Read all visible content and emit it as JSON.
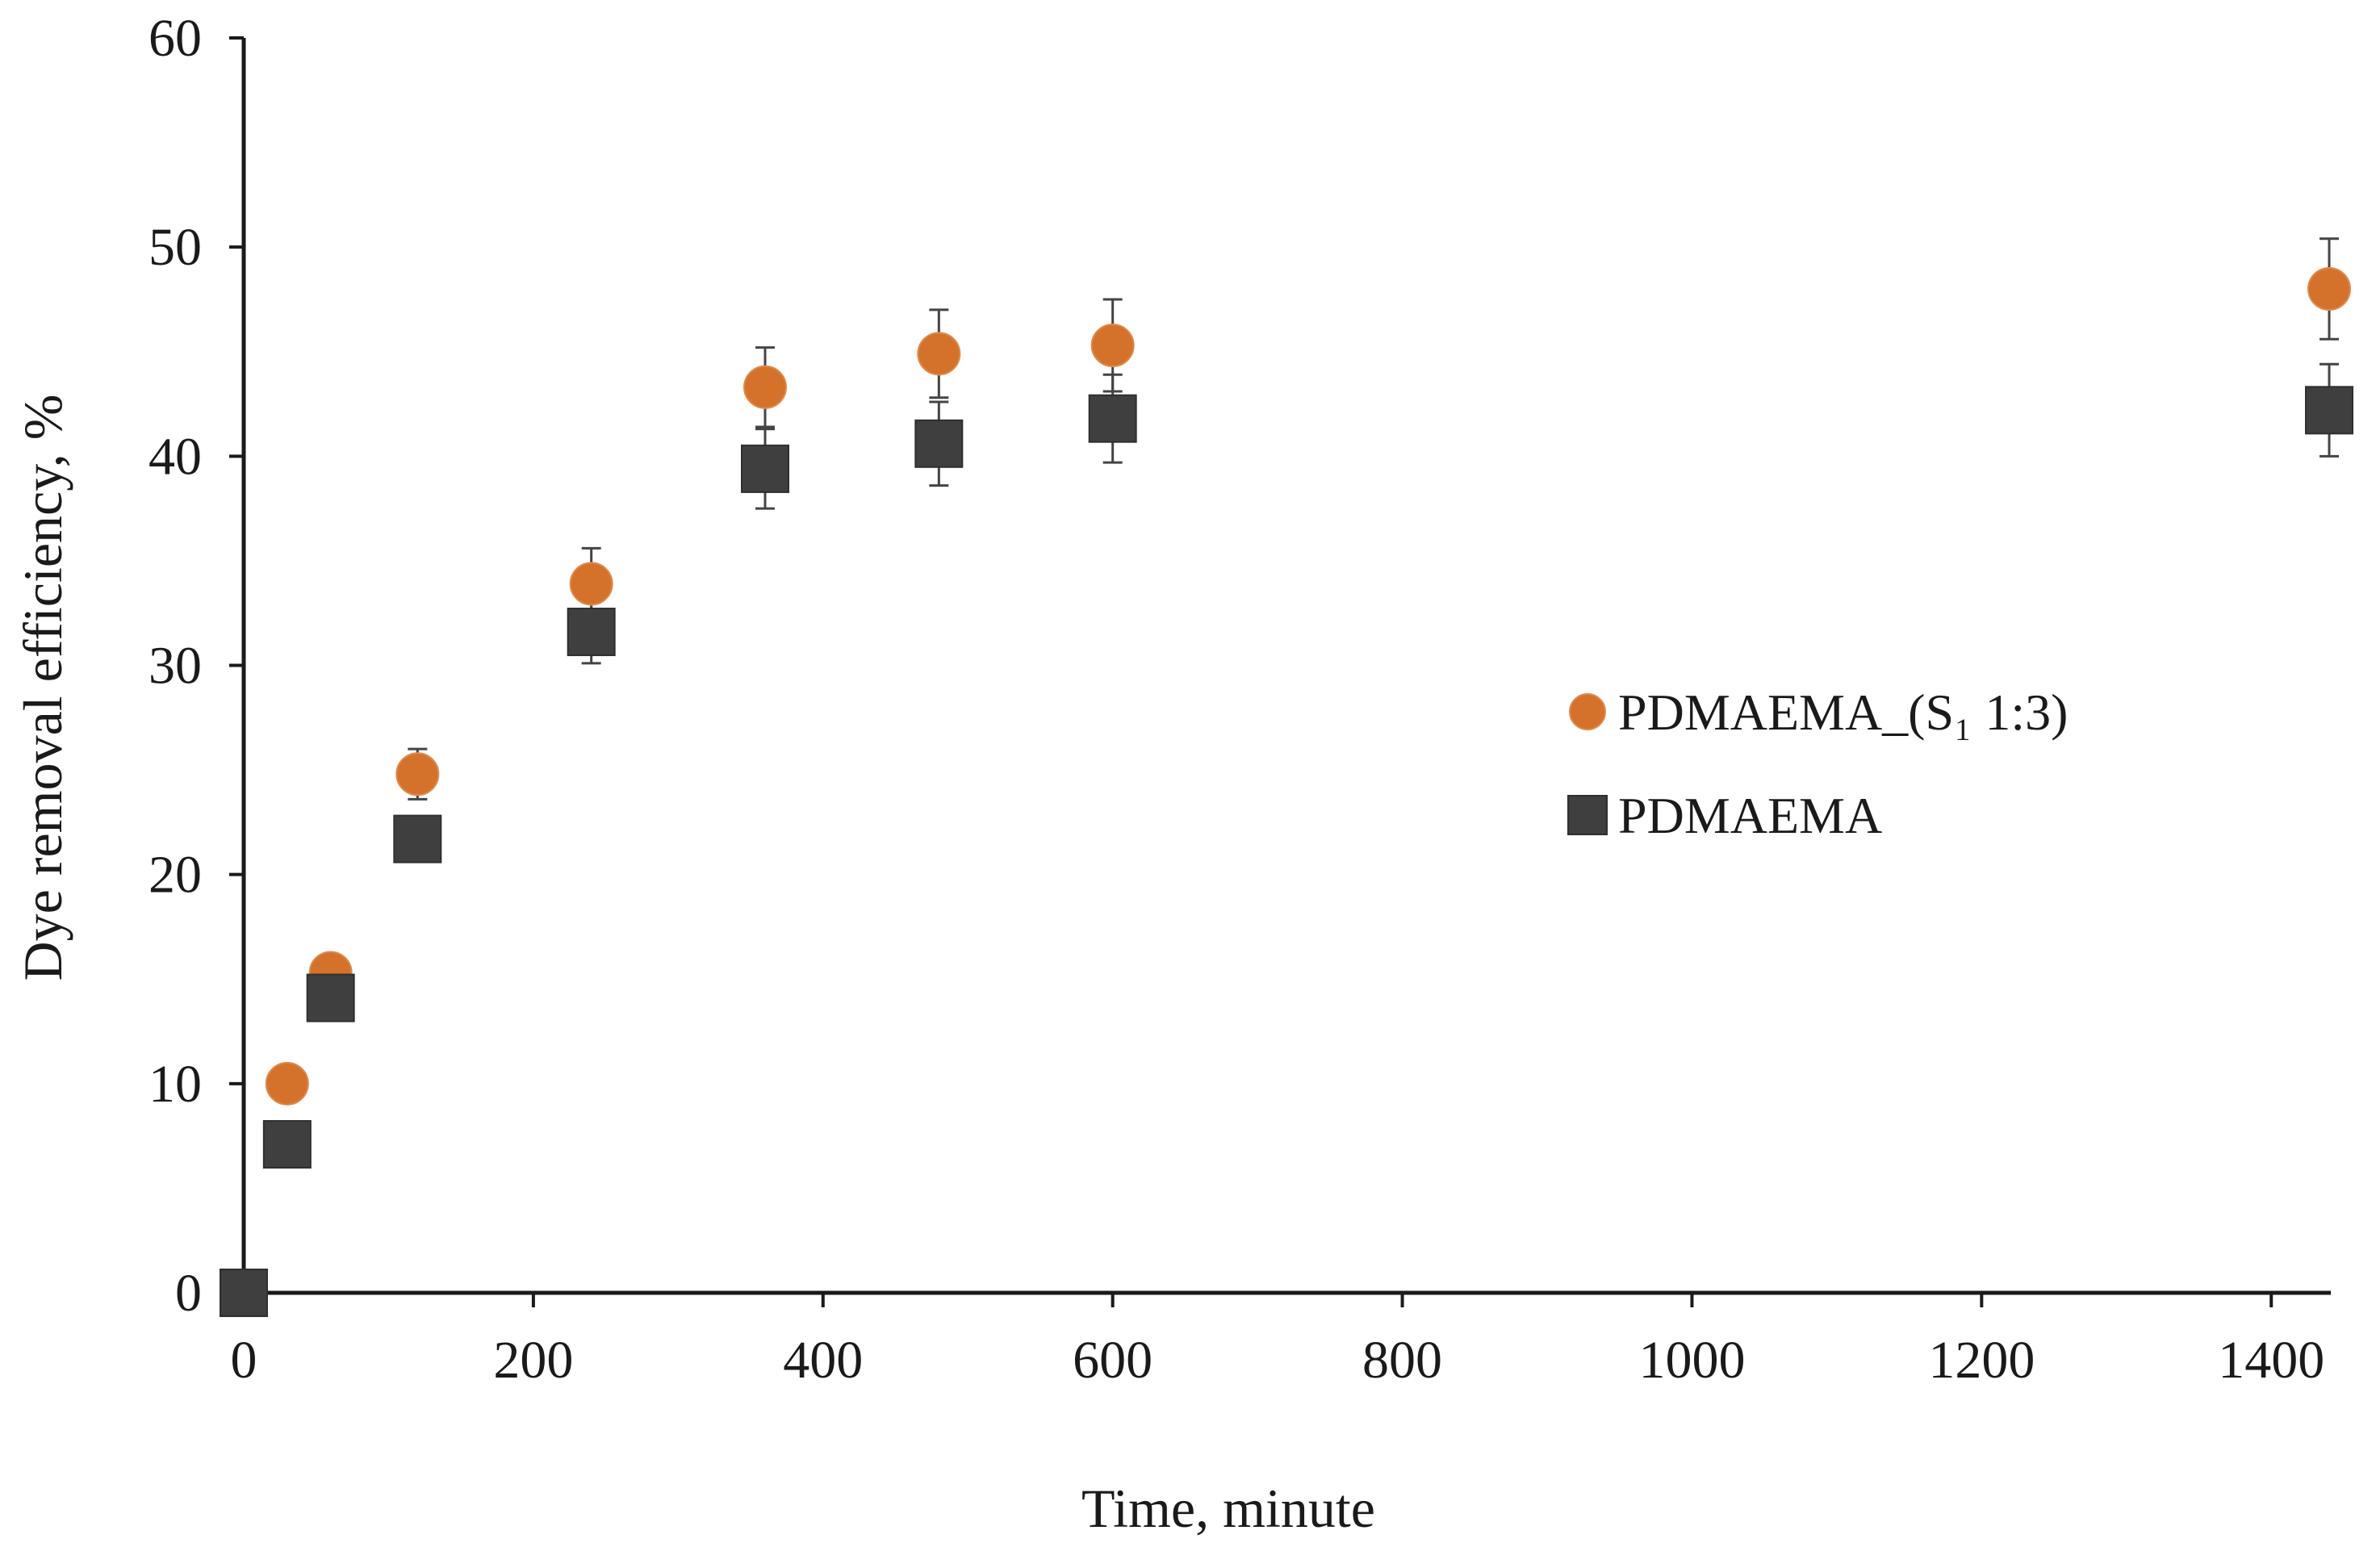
{
  "chart_data": {
    "type": "scatter",
    "xlabel": "Time, minute",
    "ylabel": "Dye removal  efficiency, %",
    "xlim": [
      0,
      1440
    ],
    "ylim": [
      0,
      60
    ],
    "xticks": [
      0,
      200,
      400,
      600,
      800,
      1000,
      1200,
      1400
    ],
    "yticks": [
      0,
      10,
      20,
      30,
      40,
      50,
      60
    ],
    "grid": false,
    "legend_position": "right-middle",
    "series": [
      {
        "name": "PDMAEMA_(S₁ 1:3)",
        "marker": "circle",
        "color": "#d4722c",
        "x": [
          0,
          30,
          60,
          120,
          240,
          360,
          480,
          600,
          1440
        ],
        "y": [
          0,
          10.0,
          15.3,
          24.8,
          33.9,
          43.3,
          44.9,
          45.3,
          48.0
        ],
        "error": [
          0,
          0.4,
          0.5,
          1.2,
          1.7,
          1.9,
          2.1,
          2.2,
          2.4
        ]
      },
      {
        "name": "PDMAEMA",
        "marker": "square",
        "color": "#3f3f3f",
        "x": [
          0,
          30,
          60,
          120,
          240,
          360,
          480,
          600,
          1440
        ],
        "y": [
          0,
          7.1,
          14.1,
          21.7,
          31.6,
          39.4,
          40.6,
          41.8,
          42.2
        ],
        "error": [
          0,
          0.3,
          0.5,
          0.6,
          1.5,
          1.9,
          2.0,
          2.1,
          2.2
        ]
      }
    ]
  }
}
